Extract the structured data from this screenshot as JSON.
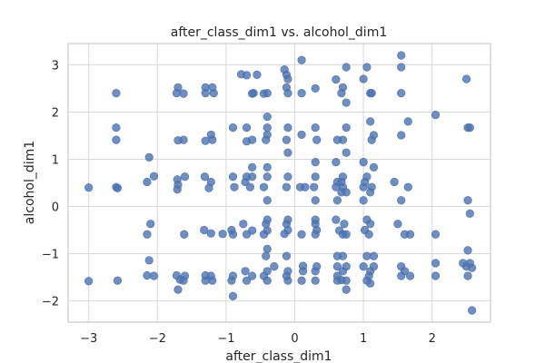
{
  "chart_data": {
    "type": "scatter",
    "title": "after_class_dim1 vs. alcohol_dim1",
    "xlabel": "after_class_dim1",
    "ylabel": "alcohol_dim1",
    "xlim": [
      -3.3,
      2.85
    ],
    "ylim": [
      -2.45,
      3.45
    ],
    "xticks": [
      -3,
      -2,
      -1,
      0,
      1,
      2
    ],
    "yticks": [
      -2,
      -1,
      0,
      1,
      2,
      3
    ],
    "grid": true,
    "marker_color": "#4c72b0",
    "points": [
      {
        "x": -3.0,
        "y": 0.4
      },
      {
        "x": -3.0,
        "y": -1.58
      },
      {
        "x": -2.6,
        "y": 2.4
      },
      {
        "x": -2.6,
        "y": 1.67
      },
      {
        "x": -2.6,
        "y": 1.41
      },
      {
        "x": -2.6,
        "y": 0.41
      },
      {
        "x": -2.58,
        "y": 0.39
      },
      {
        "x": -2.58,
        "y": -1.57
      },
      {
        "x": -2.12,
        "y": 1.04
      },
      {
        "x": -2.15,
        "y": 0.52
      },
      {
        "x": -2.05,
        "y": 0.64
      },
      {
        "x": -2.1,
        "y": -0.37
      },
      {
        "x": -2.15,
        "y": -0.59
      },
      {
        "x": -2.12,
        "y": -1.14
      },
      {
        "x": -2.15,
        "y": -1.46
      },
      {
        "x": -2.05,
        "y": -1.47
      },
      {
        "x": -1.7,
        "y": 2.52
      },
      {
        "x": -1.72,
        "y": 2.4
      },
      {
        "x": -1.62,
        "y": 2.39
      },
      {
        "x": -1.7,
        "y": 1.4
      },
      {
        "x": -1.62,
        "y": 1.41
      },
      {
        "x": -1.71,
        "y": 0.57
      },
      {
        "x": -1.7,
        "y": 0.46
      },
      {
        "x": -1.71,
        "y": 0.36
      },
      {
        "x": -1.6,
        "y": 0.63
      },
      {
        "x": -1.61,
        "y": -0.59
      },
      {
        "x": -1.72,
        "y": -1.46
      },
      {
        "x": -1.67,
        "y": -1.55
      },
      {
        "x": -1.6,
        "y": -1.47
      },
      {
        "x": -1.62,
        "y": -1.57
      },
      {
        "x": -1.7,
        "y": -1.76
      },
      {
        "x": -1.3,
        "y": 2.52
      },
      {
        "x": -1.2,
        "y": 2.52
      },
      {
        "x": -1.3,
        "y": 2.4
      },
      {
        "x": -1.18,
        "y": 2.4
      },
      {
        "x": -1.22,
        "y": 1.52
      },
      {
        "x": -1.2,
        "y": 1.41
      },
      {
        "x": -1.3,
        "y": 1.39
      },
      {
        "x": -1.31,
        "y": 0.63
      },
      {
        "x": -1.22,
        "y": 0.52
      },
      {
        "x": -1.25,
        "y": 0.39
      },
      {
        "x": -1.32,
        "y": -0.5
      },
      {
        "x": -1.22,
        "y": -0.57
      },
      {
        "x": -1.3,
        "y": -1.46
      },
      {
        "x": -1.22,
        "y": -1.47
      },
      {
        "x": -1.3,
        "y": -1.57
      },
      {
        "x": -1.2,
        "y": -1.57
      },
      {
        "x": -1.05,
        "y": -0.58
      },
      {
        "x": -0.9,
        "y": 1.67
      },
      {
        "x": -0.9,
        "y": 0.63
      },
      {
        "x": -0.88,
        "y": 0.41
      },
      {
        "x": -0.92,
        "y": -0.5
      },
      {
        "x": -0.9,
        "y": -0.59
      },
      {
        "x": -0.9,
        "y": -1.47
      },
      {
        "x": -0.92,
        "y": -1.57
      },
      {
        "x": -0.9,
        "y": -1.9
      },
      {
        "x": -0.78,
        "y": 2.8
      },
      {
        "x": -0.7,
        "y": 2.78
      },
      {
        "x": -0.62,
        "y": 2.39
      },
      {
        "x": -0.6,
        "y": 2.4
      },
      {
        "x": -0.7,
        "y": 1.67
      },
      {
        "x": -0.62,
        "y": 1.41
      },
      {
        "x": -0.7,
        "y": 1.38
      },
      {
        "x": -0.62,
        "y": 0.83
      },
      {
        "x": -0.7,
        "y": 0.63
      },
      {
        "x": -0.62,
        "y": 0.63
      },
      {
        "x": -0.72,
        "y": 0.52
      },
      {
        "x": -0.65,
        "y": 0.41
      },
      {
        "x": -0.75,
        "y": -0.37
      },
      {
        "x": -0.7,
        "y": -0.59
      },
      {
        "x": -0.62,
        "y": -0.51
      },
      {
        "x": -0.72,
        "y": -1.37
      },
      {
        "x": -0.62,
        "y": -1.47
      },
      {
        "x": -0.7,
        "y": -1.57
      },
      {
        "x": -0.55,
        "y": 2.79
      },
      {
        "x": -0.45,
        "y": 2.39
      },
      {
        "x": -0.4,
        "y": 2.4
      },
      {
        "x": -0.4,
        "y": 1.9
      },
      {
        "x": -0.4,
        "y": 1.67
      },
      {
        "x": -0.4,
        "y": 1.52
      },
      {
        "x": -0.42,
        "y": 1.41
      },
      {
        "x": -0.4,
        "y": 0.83
      },
      {
        "x": -0.4,
        "y": 0.63
      },
      {
        "x": -0.45,
        "y": 0.41
      },
      {
        "x": -0.4,
        "y": 0.13
      },
      {
        "x": -0.4,
        "y": -0.28
      },
      {
        "x": -0.42,
        "y": -0.37
      },
      {
        "x": -0.4,
        "y": -0.51
      },
      {
        "x": -0.45,
        "y": -0.59
      },
      {
        "x": -0.4,
        "y": -0.9
      },
      {
        "x": -0.42,
        "y": -1.05
      },
      {
        "x": -0.4,
        "y": -1.37
      },
      {
        "x": -0.45,
        "y": -1.47
      },
      {
        "x": -0.4,
        "y": -1.57
      },
      {
        "x": -0.3,
        "y": -1.27
      },
      {
        "x": -0.15,
        "y": 2.9
      },
      {
        "x": -0.12,
        "y": 2.79
      },
      {
        "x": -0.1,
        "y": 2.7
      },
      {
        "x": -0.12,
        "y": 2.52
      },
      {
        "x": -0.1,
        "y": 2.4
      },
      {
        "x": -0.1,
        "y": 1.67
      },
      {
        "x": -0.12,
        "y": 1.41
      },
      {
        "x": -0.1,
        "y": 1.14
      },
      {
        "x": -0.1,
        "y": 0.63
      },
      {
        "x": -0.12,
        "y": 0.41
      },
      {
        "x": -0.1,
        "y": -0.28
      },
      {
        "x": -0.12,
        "y": -0.37
      },
      {
        "x": -0.1,
        "y": -0.5
      },
      {
        "x": -0.15,
        "y": -0.58
      },
      {
        "x": -0.12,
        "y": -1.05
      },
      {
        "x": -0.1,
        "y": -1.37
      },
      {
        "x": -0.12,
        "y": -1.47
      },
      {
        "x": -0.1,
        "y": -1.57
      },
      {
        "x": 0.1,
        "y": 3.1
      },
      {
        "x": 0.1,
        "y": 2.4
      },
      {
        "x": 0.1,
        "y": 1.52
      },
      {
        "x": 0.08,
        "y": 0.41
      },
      {
        "x": 0.15,
        "y": 0.41
      },
      {
        "x": 0.1,
        "y": -0.59
      },
      {
        "x": 0.12,
        "y": -1.26
      },
      {
        "x": 0.12,
        "y": -1.37
      },
      {
        "x": 0.1,
        "y": -1.57
      },
      {
        "x": 0.3,
        "y": 2.5
      },
      {
        "x": 0.3,
        "y": 1.67
      },
      {
        "x": 0.32,
        "y": 1.41
      },
      {
        "x": 0.3,
        "y": 0.94
      },
      {
        "x": 0.3,
        "y": 0.63
      },
      {
        "x": 0.28,
        "y": 0.41
      },
      {
        "x": 0.3,
        "y": 0.13
      },
      {
        "x": 0.3,
        "y": -0.28
      },
      {
        "x": 0.3,
        "y": -0.37
      },
      {
        "x": 0.32,
        "y": -0.5
      },
      {
        "x": 0.3,
        "y": -0.59
      },
      {
        "x": 0.32,
        "y": -1.27
      },
      {
        "x": 0.3,
        "y": -1.37
      },
      {
        "x": 0.3,
        "y": -1.57
      },
      {
        "x": 0.6,
        "y": 2.69
      },
      {
        "x": 0.68,
        "y": 2.4
      },
      {
        "x": 0.7,
        "y": 2.52
      },
      {
        "x": 0.62,
        "y": 1.41
      },
      {
        "x": 0.7,
        "y": 1.41
      },
      {
        "x": 0.75,
        "y": 1.67
      },
      {
        "x": 0.6,
        "y": 0.94
      },
      {
        "x": 0.62,
        "y": 0.52
      },
      {
        "x": 0.68,
        "y": 0.52
      },
      {
        "x": 0.6,
        "y": 0.41
      },
      {
        "x": 0.7,
        "y": 0.41
      },
      {
        "x": 0.68,
        "y": 0.3
      },
      {
        "x": 0.62,
        "y": 0.13
      },
      {
        "x": 0.7,
        "y": 0.63
      },
      {
        "x": 0.6,
        "y": -0.28
      },
      {
        "x": 0.72,
        "y": -0.37
      },
      {
        "x": 0.65,
        "y": -0.51
      },
      {
        "x": 0.7,
        "y": -0.59
      },
      {
        "x": 0.62,
        "y": -1.05
      },
      {
        "x": 0.7,
        "y": -1.05
      },
      {
        "x": 0.62,
        "y": -1.27
      },
      {
        "x": 0.7,
        "y": -1.37
      },
      {
        "x": 0.62,
        "y": -1.47
      },
      {
        "x": 0.68,
        "y": -1.56
      },
      {
        "x": 0.62,
        "y": -1.57
      },
      {
        "x": 0.75,
        "y": 2.95
      },
      {
        "x": 0.75,
        "y": 2.2
      },
      {
        "x": 0.75,
        "y": 1.14
      },
      {
        "x": 0.75,
        "y": 0.3
      },
      {
        "x": 0.75,
        "y": -0.59
      },
      {
        "x": 0.75,
        "y": -1.27
      },
      {
        "x": 0.75,
        "y": -1.57
      },
      {
        "x": 0.75,
        "y": -1.76
      },
      {
        "x": 1.0,
        "y": 2.7
      },
      {
        "x": 1.05,
        "y": 2.95
      },
      {
        "x": 1.1,
        "y": 2.4
      },
      {
        "x": 1.12,
        "y": 2.4
      },
      {
        "x": 1.0,
        "y": 0.94
      },
      {
        "x": 1.05,
        "y": 0.63
      },
      {
        "x": 1.02,
        "y": 0.52
      },
      {
        "x": 1.0,
        "y": 0.41
      },
      {
        "x": 1.1,
        "y": 0.3
      },
      {
        "x": 1.0,
        "y": 0.13
      },
      {
        "x": 1.05,
        "y": -0.28
      },
      {
        "x": 1.1,
        "y": -0.37
      },
      {
        "x": 1.02,
        "y": -0.5
      },
      {
        "x": 1.08,
        "y": -0.59
      },
      {
        "x": 1.0,
        "y": -1.27
      },
      {
        "x": 1.05,
        "y": -1.05
      },
      {
        "x": 1.1,
        "y": -1.37
      },
      {
        "x": 1.08,
        "y": -1.47
      },
      {
        "x": 1.05,
        "y": -1.57
      },
      {
        "x": 1.1,
        "y": -1.63
      },
      {
        "x": 1.1,
        "y": 1.8
      },
      {
        "x": 1.12,
        "y": 1.41
      },
      {
        "x": 1.15,
        "y": 1.51
      },
      {
        "x": 1.12,
        "y": 0.41
      },
      {
        "x": 1.15,
        "y": 0.83
      },
      {
        "x": 1.15,
        "y": -1.05
      },
      {
        "x": 1.15,
        "y": -1.27
      },
      {
        "x": 1.55,
        "y": 3.2
      },
      {
        "x": 1.55,
        "y": 2.95
      },
      {
        "x": 1.55,
        "y": 2.4
      },
      {
        "x": 1.55,
        "y": 1.51
      },
      {
        "x": 1.45,
        "y": 0.52
      },
      {
        "x": 1.55,
        "y": 0.13
      },
      {
        "x": 1.5,
        "y": -0.37
      },
      {
        "x": 1.55,
        "y": -1.27
      },
      {
        "x": 1.6,
        "y": -1.37
      },
      {
        "x": 1.55,
        "y": -1.47
      },
      {
        "x": 1.65,
        "y": 1.8
      },
      {
        "x": 1.65,
        "y": 0.41
      },
      {
        "x": 1.6,
        "y": -0.59
      },
      {
        "x": 1.68,
        "y": -0.59
      },
      {
        "x": 1.68,
        "y": -1.47
      },
      {
        "x": 2.05,
        "y": 1.94
      },
      {
        "x": 2.05,
        "y": -0.59
      },
      {
        "x": 2.05,
        "y": -1.2
      },
      {
        "x": 2.05,
        "y": -1.47
      },
      {
        "x": 2.5,
        "y": 2.7
      },
      {
        "x": 2.52,
        "y": 1.67
      },
      {
        "x": 2.55,
        "y": 1.67
      },
      {
        "x": 2.52,
        "y": 0.13
      },
      {
        "x": 2.55,
        "y": -0.15
      },
      {
        "x": 2.52,
        "y": -0.93
      },
      {
        "x": 2.45,
        "y": -1.2
      },
      {
        "x": 2.5,
        "y": -1.27
      },
      {
        "x": 2.55,
        "y": -1.2
      },
      {
        "x": 2.58,
        "y": -1.3
      },
      {
        "x": 2.52,
        "y": -1.47
      },
      {
        "x": 2.58,
        "y": -2.2
      }
    ]
  }
}
